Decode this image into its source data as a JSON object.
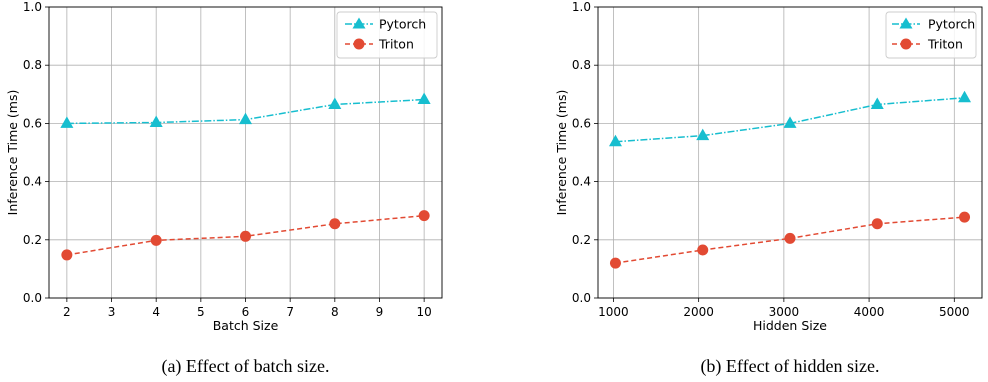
{
  "chart_data": [
    {
      "type": "line",
      "caption": "(a) Effect of batch size.",
      "xlabel": "Batch Size",
      "ylabel": "Inference Time (ms)",
      "x": [
        2,
        4,
        6,
        8,
        10
      ],
      "xlim": [
        1.6,
        10.4
      ],
      "ylim": [
        0.0,
        1.0
      ],
      "xticks": [
        "2",
        "3",
        "4",
        "5",
        "6",
        "7",
        "8",
        "9",
        "10"
      ],
      "yticks": [
        "0.0",
        "0.2",
        "0.4",
        "0.6",
        "0.8",
        "1.0"
      ],
      "grid": true,
      "legend_position": "top-right",
      "series": [
        {
          "name": "Pytorch",
          "values": [
            0.6,
            0.603,
            0.613,
            0.665,
            0.682
          ],
          "color": "#17becf",
          "marker": "triangle",
          "linestyle": "dash-dot"
        },
        {
          "name": "Triton",
          "values": [
            0.148,
            0.198,
            0.212,
            0.255,
            0.283
          ],
          "color": "#e24a33",
          "marker": "circle",
          "linestyle": "dashed"
        }
      ]
    },
    {
      "type": "line",
      "caption": "(b) Effect of hidden size.",
      "xlabel": "Hidden Size",
      "ylabel": "Inference Time (ms)",
      "x": [
        1024,
        2048,
        3072,
        4096,
        5120
      ],
      "xlim": [
        819,
        5325
      ],
      "ylim": [
        0.0,
        1.0
      ],
      "xticks": [
        "1000",
        "2000",
        "3000",
        "4000",
        "5000"
      ],
      "yticks": [
        "0.0",
        "0.2",
        "0.4",
        "0.6",
        "0.8",
        "1.0"
      ],
      "grid": true,
      "legend_position": "top-right",
      "series": [
        {
          "name": "Pytorch",
          "values": [
            0.537,
            0.558,
            0.6,
            0.665,
            0.688
          ],
          "color": "#17becf",
          "marker": "triangle",
          "linestyle": "dash-dot"
        },
        {
          "name": "Triton",
          "values": [
            0.12,
            0.165,
            0.205,
            0.255,
            0.278
          ],
          "color": "#e24a33",
          "marker": "circle",
          "linestyle": "dashed"
        }
      ]
    }
  ]
}
